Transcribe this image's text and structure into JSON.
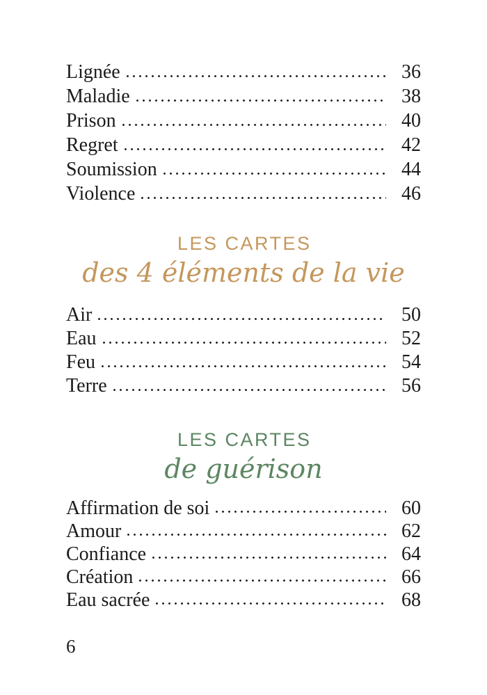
{
  "colors": {
    "gold": "#C4975C",
    "green": "#5B8661",
    "text": "#1B1B1B"
  },
  "toc": {
    "section1": {
      "entries": [
        {
          "label": "Lignée",
          "page": "36"
        },
        {
          "label": "Maladie",
          "page": "38"
        },
        {
          "label": "Prison",
          "page": "40"
        },
        {
          "label": "Regret",
          "page": "42"
        },
        {
          "label": "Soumission",
          "page": "44"
        },
        {
          "label": "Violence",
          "page": "46"
        }
      ]
    },
    "heading1": {
      "eyebrow": "LES CARTES",
      "title": "des 4 éléments de la vie"
    },
    "section2": {
      "entries": [
        {
          "label": "Air",
          "page": "50"
        },
        {
          "label": "Eau",
          "page": "52"
        },
        {
          "label": "Feu",
          "page": "54"
        },
        {
          "label": "Terre",
          "page": "56"
        }
      ]
    },
    "heading2": {
      "eyebrow": "LES CARTES",
      "title": "de guérison"
    },
    "section3": {
      "entries": [
        {
          "label": "Affirmation de soi",
          "page": "60"
        },
        {
          "label": "Amour",
          "page": "62"
        },
        {
          "label": "Confiance",
          "page": "64"
        },
        {
          "label": "Création",
          "page": "66"
        },
        {
          "label": "Eau sacrée",
          "page": "68"
        }
      ]
    }
  },
  "footer": {
    "page_number": "6"
  }
}
